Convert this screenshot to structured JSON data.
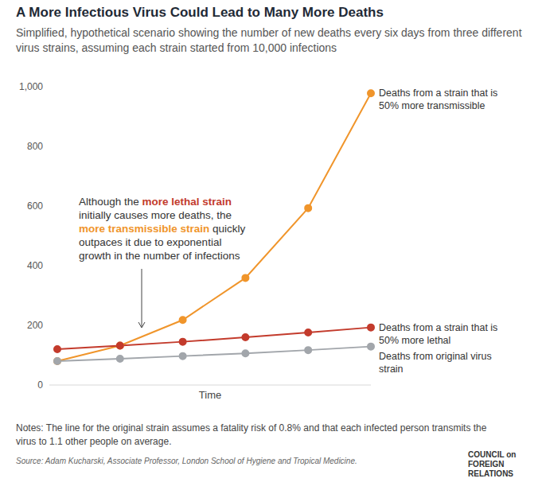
{
  "chart_data": {
    "type": "line",
    "title": "A More Infectious Virus Could Lead to Many More Deaths",
    "subtitle": "Simplified, hypothetical scenario showing the number of new deaths every six days from three different virus strains, assuming each strain started from 10,000 infections",
    "x_label": "Time",
    "categories": [
      null,
      null,
      null,
      null,
      null,
      null
    ],
    "series": [
      {
        "name": "Deaths from a strain that is 50% more transmissible",
        "color": "#f0952b",
        "marker": "circle",
        "values": [
          80,
          132,
          218,
          359,
          593,
          978
        ]
      },
      {
        "name": "Deaths from a strain that is 50% more lethal",
        "color": "#c33b2c",
        "marker": "circle",
        "values": [
          120,
          132,
          145,
          160,
          176,
          193
        ]
      },
      {
        "name": "Deaths from original virus strain",
        "color": "#a2a6ab",
        "marker": "circle",
        "values": [
          80,
          88,
          97,
          106,
          117,
          129
        ]
      }
    ],
    "ylim": [
      0,
      1000
    ],
    "yticks": [
      0,
      200,
      400,
      600,
      800,
      {
        "value": 1000,
        "label": "1,000"
      }
    ],
    "grid": false,
    "tick_labels": "y",
    "annotation": [
      {
        "text": "Although the"
      },
      {
        "text": "more lethal strain",
        "color": "#c33b2c"
      },
      {
        "text": "initially causes more deaths, the"
      },
      {
        "text": "more transmissible strain",
        "color": "#f0952b"
      },
      {
        "text": "quickly outpaces it due to exponential growth in the number of infections"
      }
    ],
    "notes": "Notes: The line for the original strain assumes a fatality risk of 0.8% and that each infected person transmits the virus to 1.1 other people on average.",
    "source": "Source: Adam Kucharski, Associate Professor, London School of Hygiene and Tropical Medicine.",
    "logo": [
      "COUNCIL on",
      "FOREIGN",
      "RELATIONS"
    ]
  }
}
